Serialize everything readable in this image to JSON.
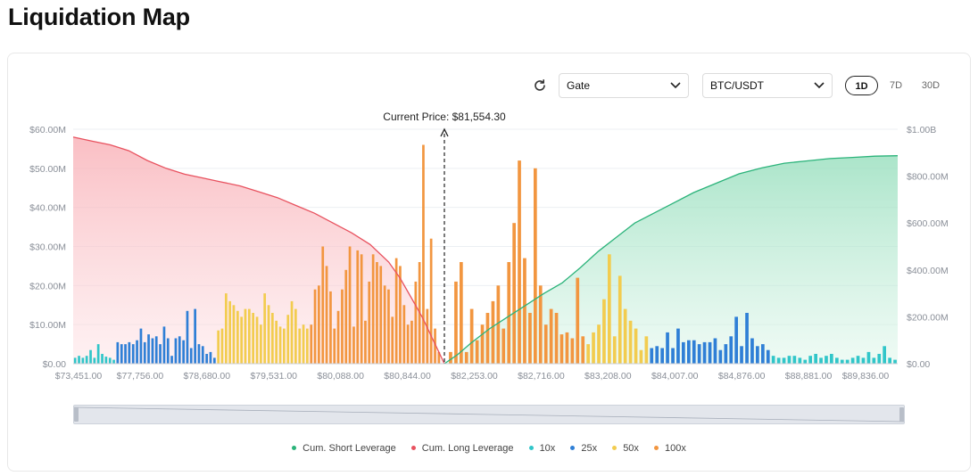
{
  "page_title": "Liquidation Map",
  "controls": {
    "refresh_icon": "refresh-icon",
    "exchange": "Gate",
    "pair": "BTC/USDT",
    "timeframes": [
      "1D",
      "7D",
      "30D"
    ],
    "active_timeframe": "1D"
  },
  "colors": {
    "short": "#2bb37a",
    "long": "#e8525f",
    "x10": "#31c6c9",
    "x25": "#2f7fd6",
    "x50": "#f2cc4f",
    "x100": "#f29640"
  },
  "legend": [
    {
      "label": "Cum. Short Leverage",
      "key": "short"
    },
    {
      "label": "Cum. Long Leverage",
      "key": "long"
    },
    {
      "label": "10x",
      "key": "x10"
    },
    {
      "label": "25x",
      "key": "x25"
    },
    {
      "label": "50x",
      "key": "x50"
    },
    {
      "label": "100x",
      "key": "x100"
    }
  ],
  "chart_data": {
    "type": "bar",
    "current_price_label": "Current Price: $81,554.30",
    "left_axis": {
      "ticks": [
        "$0.00",
        "$10.00M",
        "$20.00M",
        "$30.00M",
        "$40.00M",
        "$50.00M",
        "$60.00M"
      ],
      "max": 60
    },
    "right_axis": {
      "ticks": [
        "$0.00",
        "$200.00M",
        "$400.00M",
        "$600.00M",
        "$800.00M",
        "$1.00B"
      ],
      "max": 1000
    },
    "x_tick_labels": [
      "$73,451.00",
      "$77,756.00",
      "$78,680.00",
      "$79,531.00",
      "$80,088.00",
      "$80,844.00",
      "$82,253.00",
      "$82,716.00",
      "$83,208.00",
      "$84,007.00",
      "$84,876.00",
      "$88,881.00",
      "$89,836.00"
    ],
    "bars_left": [
      {
        "lev": "x10",
        "values": [
          1.5,
          2,
          1.5,
          2,
          3.5,
          1.5,
          5,
          2.5,
          1.8,
          1.5,
          1
        ]
      },
      {
        "lev": "x25",
        "values": [
          5.5,
          5,
          5,
          5.5,
          5,
          6,
          9,
          5.5,
          7.5,
          6.5,
          7,
          5,
          9.5,
          6.5,
          2,
          6.5,
          7,
          6,
          13.5,
          4,
          14,
          5,
          4.5,
          2.5,
          3,
          1.5
        ]
      },
      {
        "lev": "x50",
        "values": [
          8.5,
          9,
          18,
          16,
          15,
          13.5,
          12,
          14,
          14,
          13,
          12,
          10,
          18,
          15,
          13,
          11,
          9.5,
          9,
          12.5,
          16,
          14,
          9,
          10,
          9
        ]
      },
      {
        "lev": "x100",
        "values": [
          10,
          19,
          20,
          30,
          25,
          18.5,
          9,
          13.5,
          19,
          24,
          30,
          9.5,
          29,
          28,
          11,
          21,
          28,
          26,
          25,
          20,
          19,
          12,
          27,
          25,
          15,
          10,
          11,
          21,
          26,
          56,
          14,
          32,
          9,
          3
        ]
      }
    ],
    "bars_right": [
      {
        "lev": "x100",
        "values": [
          3,
          21,
          26,
          3,
          14,
          6,
          10,
          13,
          16,
          20,
          9,
          26,
          36,
          52,
          27,
          13,
          50,
          20,
          10,
          14,
          13,
          7.5,
          8,
          6.5,
          22,
          7
        ]
      },
      {
        "lev": "x50",
        "values": [
          5,
          8,
          10,
          16.5,
          28,
          7,
          22.5,
          14,
          11,
          9,
          3.5,
          7
        ]
      },
      {
        "lev": "x25",
        "values": [
          4,
          4.5,
          4,
          8,
          4,
          9,
          5.5,
          6,
          6,
          5,
          5.5,
          5.5,
          6.5,
          3.5,
          5,
          7,
          12,
          4.5,
          13,
          6.5,
          4.5,
          5,
          3.5
        ]
      },
      {
        "lev": "x10",
        "values": [
          2,
          1.5,
          1.5,
          2,
          2,
          1.5,
          1,
          2,
          2.5,
          1.5,
          2,
          2.5,
          1.5,
          1,
          1,
          1.5,
          2,
          1.5,
          3,
          1.5,
          2.5,
          4.5,
          1.5,
          1
        ]
      }
    ],
    "cum_long": [
      [
        0,
        58
      ],
      [
        0.05,
        57
      ],
      [
        0.1,
        56
      ],
      [
        0.15,
        54.5
      ],
      [
        0.2,
        52
      ],
      [
        0.25,
        50
      ],
      [
        0.3,
        48.5
      ],
      [
        0.35,
        47.5
      ],
      [
        0.4,
        46.5
      ],
      [
        0.45,
        45.5
      ],
      [
        0.5,
        44
      ],
      [
        0.55,
        42.5
      ],
      [
        0.6,
        40.5
      ],
      [
        0.65,
        38.5
      ],
      [
        0.7,
        36
      ],
      [
        0.75,
        33.5
      ],
      [
        0.8,
        30.5
      ],
      [
        0.85,
        26
      ],
      [
        0.88,
        22
      ],
      [
        0.91,
        17
      ],
      [
        0.94,
        12
      ],
      [
        0.97,
        6
      ],
      [
        1,
        0
      ]
    ],
    "cum_short": [
      [
        0,
        0
      ],
      [
        0.03,
        40
      ],
      [
        0.06,
        90
      ],
      [
        0.1,
        150
      ],
      [
        0.14,
        200
      ],
      [
        0.18,
        250
      ],
      [
        0.22,
        300
      ],
      [
        0.26,
        345
      ],
      [
        0.3,
        410
      ],
      [
        0.34,
        480
      ],
      [
        0.38,
        540
      ],
      [
        0.42,
        600
      ],
      [
        0.46,
        640
      ],
      [
        0.5,
        680
      ],
      [
        0.55,
        730
      ],
      [
        0.6,
        770
      ],
      [
        0.65,
        810
      ],
      [
        0.7,
        835
      ],
      [
        0.75,
        855
      ],
      [
        0.8,
        865
      ],
      [
        0.85,
        875
      ],
      [
        0.9,
        880
      ],
      [
        0.95,
        885
      ],
      [
        1,
        887
      ]
    ]
  }
}
